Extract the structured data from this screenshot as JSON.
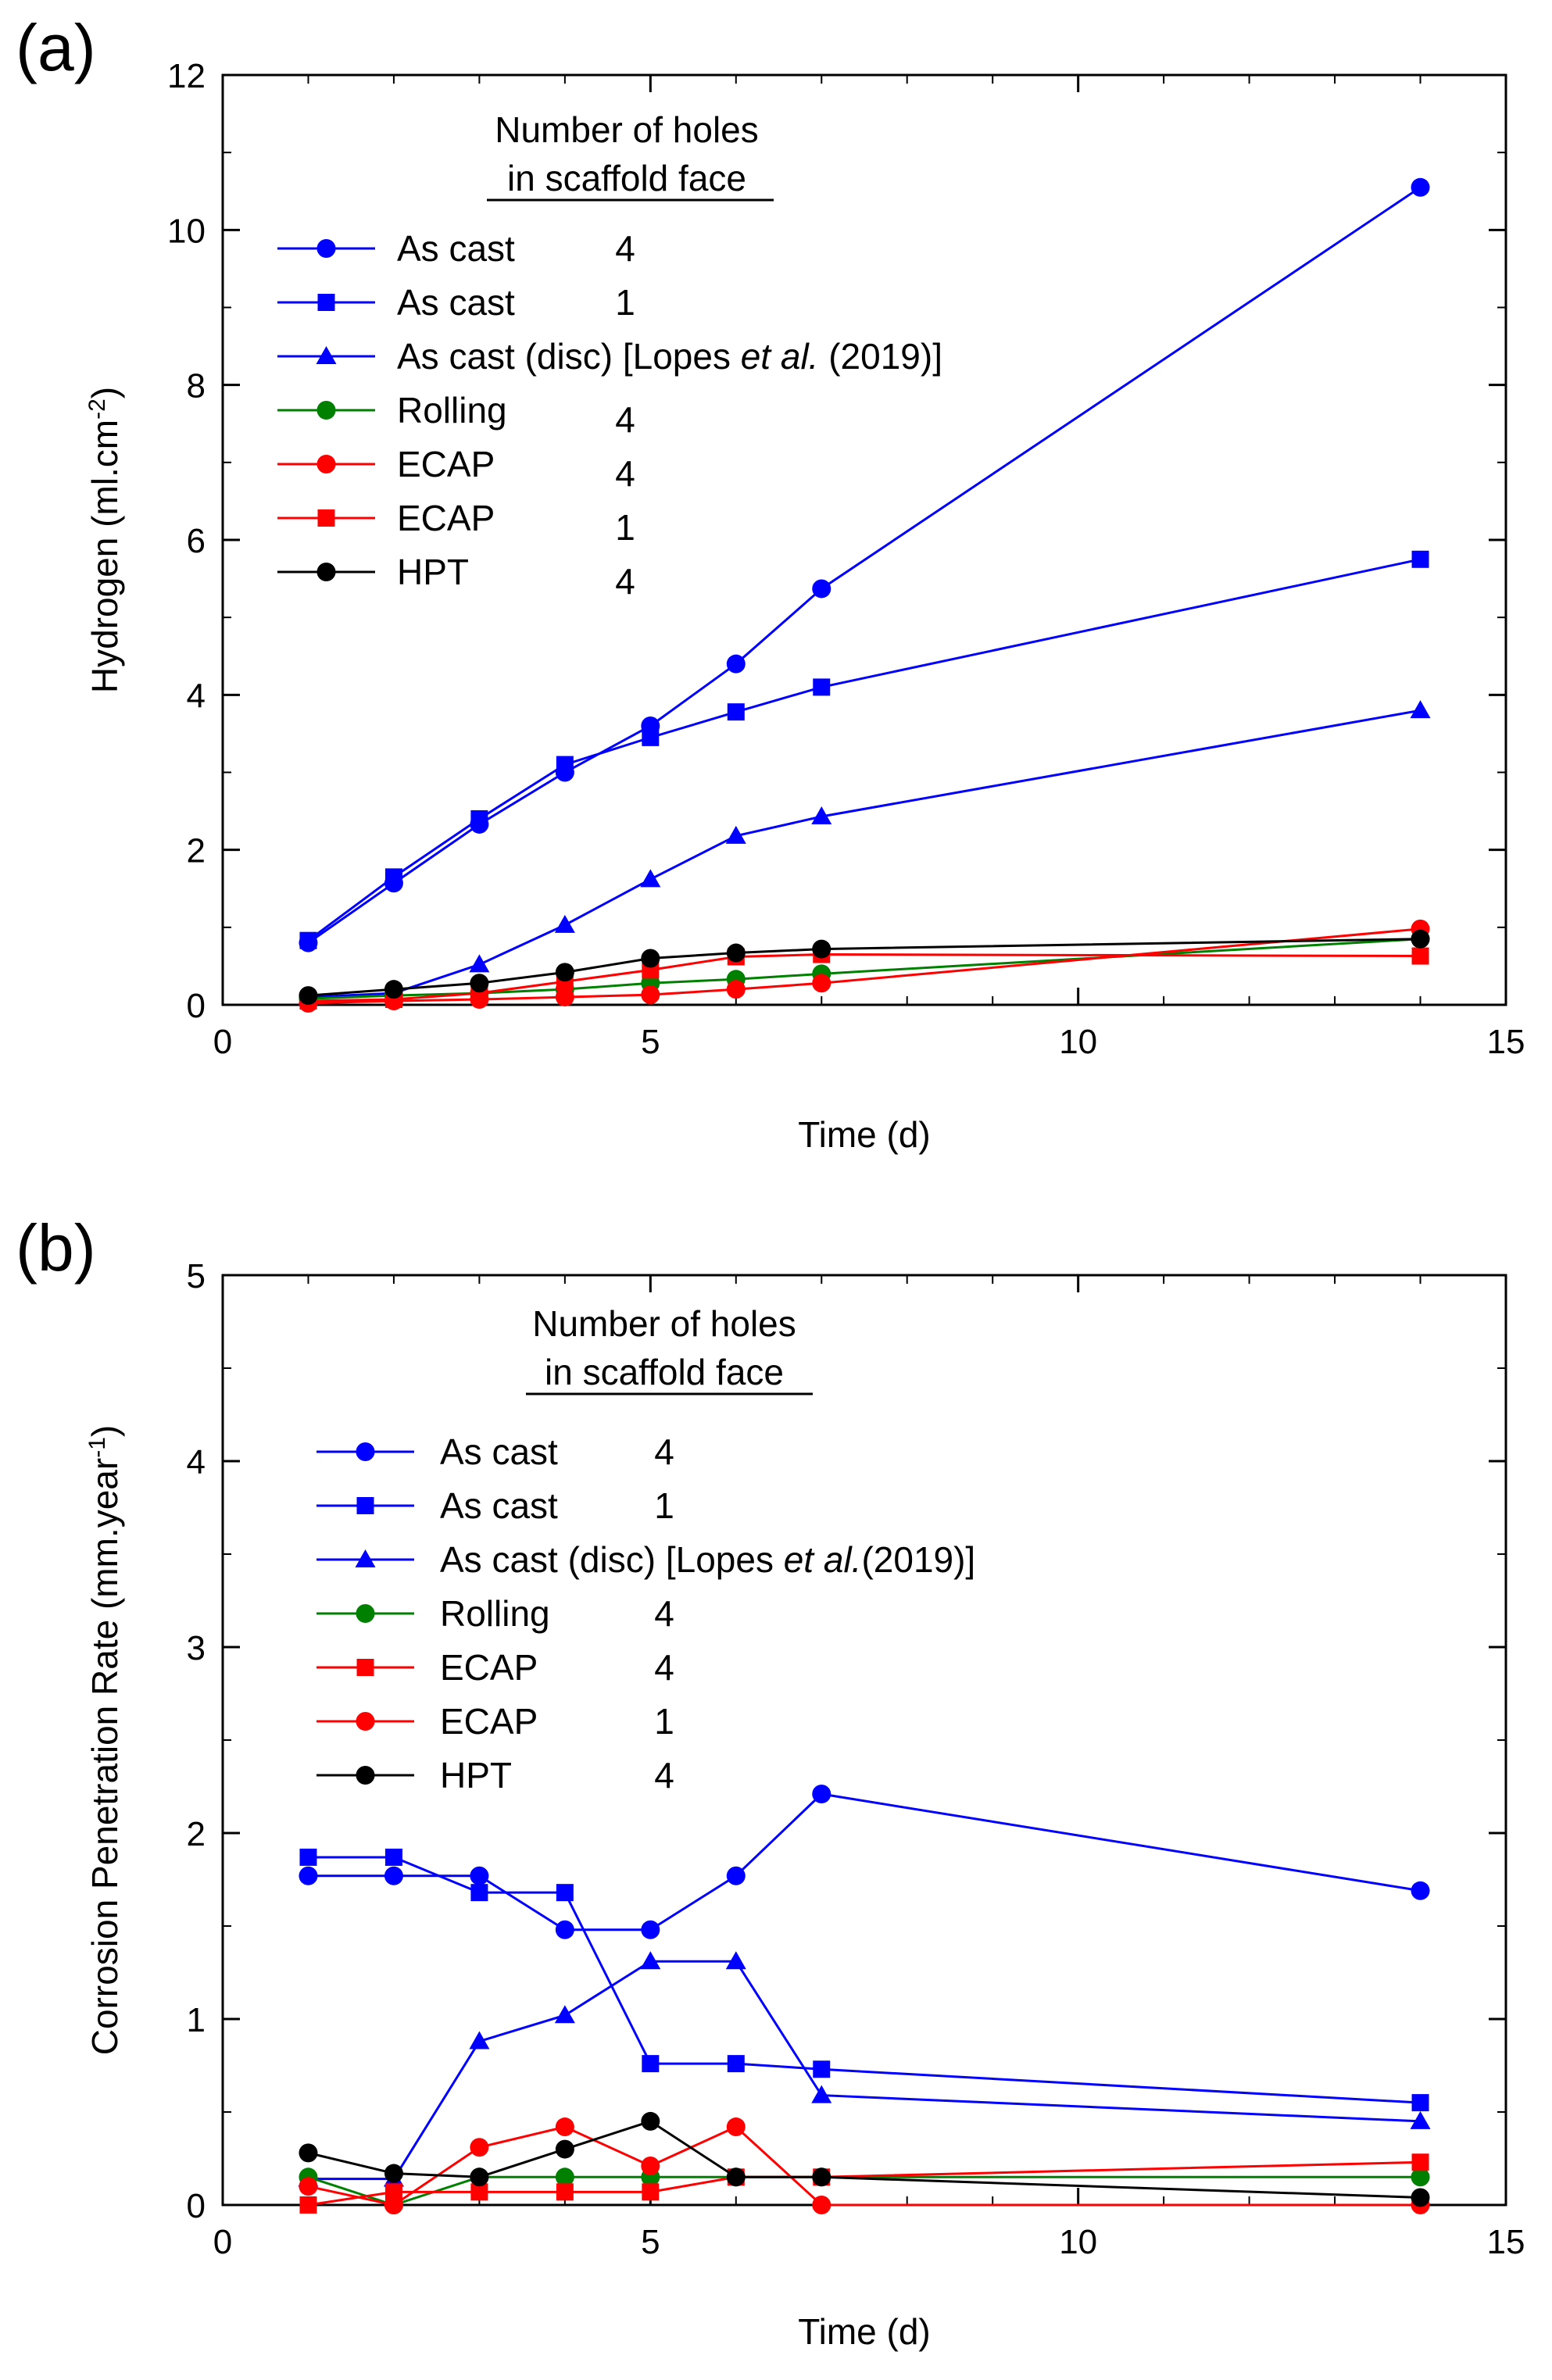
{
  "chart_data": [
    {
      "type": "line",
      "panel_label": "(a)",
      "title": "",
      "xlabel": "Time (d)",
      "ylabel_main": "Hydrogen (ml.cm",
      "ylabel_sup": "-2",
      "ylabel_close": ")",
      "xlim": [
        0,
        15
      ],
      "ylim": [
        0,
        12
      ],
      "xticks": [
        0,
        5,
        10,
        15
      ],
      "yticks": [
        0,
        2,
        4,
        6,
        8,
        10,
        12
      ],
      "grid": false,
      "legend": {
        "title_line1": "Number of holes",
        "title_line2": "in scaffold face",
        "placement": "top-left"
      },
      "series": [
        {
          "name": "As cast",
          "label_parts": [
            "As cast"
          ],
          "holes": "4",
          "color": "#0000ff",
          "marker": "circle",
          "x": [
            1,
            2,
            3,
            4,
            5,
            6,
            7,
            14
          ],
          "values": [
            0.8,
            1.57,
            2.33,
            3.0,
            3.6,
            4.4,
            5.37,
            10.55
          ]
        },
        {
          "name": "As cast",
          "label_parts": [
            "As cast"
          ],
          "holes": "1",
          "color": "#0000ff",
          "marker": "square",
          "x": [
            1,
            2,
            3,
            4,
            5,
            6,
            7,
            14
          ],
          "values": [
            0.83,
            1.65,
            2.4,
            3.1,
            3.45,
            3.78,
            4.1,
            5.75
          ]
        },
        {
          "name": "As cast (disc) [Lopes et al. (2019)]",
          "label_parts": [
            "As cast (disc) [Lopes ",
            "et al.",
            " (2019)]"
          ],
          "holes": "",
          "color": "#0000ff",
          "marker": "triangle",
          "x": [
            1,
            2,
            3,
            4,
            5,
            6,
            7,
            14
          ],
          "values": [
            0.1,
            0.15,
            0.52,
            1.03,
            1.62,
            2.18,
            2.43,
            3.8
          ]
        },
        {
          "name": "Rolling",
          "label_parts": [
            "Rolling"
          ],
          "holes": "4",
          "color": "#008000",
          "marker": "circle",
          "x": [
            1,
            2,
            3,
            4,
            5,
            6,
            7,
            14
          ],
          "values": [
            0.08,
            0.12,
            0.15,
            0.2,
            0.28,
            0.33,
            0.4,
            0.85
          ]
        },
        {
          "name": "ECAP",
          "label_parts": [
            "ECAP"
          ],
          "holes": "4",
          "color": "#ff0000",
          "marker": "circle",
          "x": [
            1,
            2,
            3,
            4,
            5,
            6,
            7,
            14
          ],
          "values": [
            0.02,
            0.05,
            0.07,
            0.1,
            0.13,
            0.2,
            0.28,
            0.98
          ]
        },
        {
          "name": "ECAP",
          "label_parts": [
            "ECAP"
          ],
          "holes": "1",
          "color": "#ff0000",
          "marker": "square",
          "x": [
            1,
            2,
            3,
            4,
            5,
            6,
            7,
            14
          ],
          "values": [
            0.05,
            0.07,
            0.15,
            0.3,
            0.45,
            0.62,
            0.65,
            0.63
          ]
        },
        {
          "name": "HPT",
          "label_parts": [
            "HPT"
          ],
          "holes": "4",
          "color": "#000000",
          "marker": "circle",
          "x": [
            1,
            2,
            3,
            4,
            5,
            6,
            7,
            14
          ],
          "values": [
            0.12,
            0.2,
            0.28,
            0.42,
            0.6,
            0.67,
            0.72,
            0.85
          ]
        }
      ]
    },
    {
      "type": "line",
      "panel_label": "(b)",
      "title": "",
      "xlabel": "Time (d)",
      "ylabel_main": "Corrosion Penetration Rate   (mm.year",
      "ylabel_sup": "-1",
      "ylabel_close": ")",
      "xlim": [
        0,
        15
      ],
      "ylim": [
        0,
        5
      ],
      "xticks": [
        0,
        5,
        10,
        15
      ],
      "yticks": [
        0,
        1,
        2,
        3,
        4,
        5
      ],
      "grid": false,
      "legend": {
        "title_line1": "Number of holes",
        "title_line2": "in scaffold face",
        "placement": "top-left"
      },
      "series": [
        {
          "name": "As cast",
          "label_parts": [
            "As cast"
          ],
          "holes": "4",
          "color": "#0000ff",
          "marker": "circle",
          "x": [
            1,
            2,
            3,
            4,
            5,
            6,
            7,
            14
          ],
          "values": [
            1.77,
            1.77,
            1.77,
            1.48,
            1.48,
            1.77,
            2.21,
            1.69
          ]
        },
        {
          "name": "As cast",
          "label_parts": [
            "As cast"
          ],
          "holes": "1",
          "color": "#0000ff",
          "marker": "square",
          "x": [
            1,
            2,
            3,
            4,
            5,
            6,
            7,
            14
          ],
          "values": [
            1.87,
            1.87,
            1.68,
            1.68,
            0.76,
            0.76,
            0.73,
            0.55
          ]
        },
        {
          "name": "As cast (disc) [Lopes et al.(2019)]",
          "label_parts": [
            "As cast  (disc) [Lopes ",
            "et al.",
            "(2019)]"
          ],
          "holes": "",
          "color": "#0000ff",
          "marker": "triangle",
          "x": [
            1,
            2,
            3,
            4,
            5,
            6,
            7,
            14
          ],
          "values": [
            0.14,
            0.14,
            0.88,
            1.02,
            1.31,
            1.31,
            0.59,
            0.45
          ]
        },
        {
          "name": "Rolling",
          "label_parts": [
            "Rolling"
          ],
          "holes": "4",
          "color": "#008000",
          "marker": "circle",
          "x": [
            1,
            2,
            3,
            4,
            5,
            6,
            7,
            14
          ],
          "values": [
            0.15,
            0.0,
            0.15,
            0.15,
            0.15,
            0.15,
            0.15,
            0.15
          ]
        },
        {
          "name": "ECAP",
          "label_parts": [
            "ECAP"
          ],
          "holes": "4",
          "color": "#ff0000",
          "marker": "square",
          "x": [
            1,
            2,
            3,
            4,
            5,
            6,
            7,
            14
          ],
          "values": [
            0.0,
            0.07,
            0.07,
            0.07,
            0.07,
            0.15,
            0.15,
            0.23
          ]
        },
        {
          "name": "ECAP",
          "label_parts": [
            "ECAP"
          ],
          "holes": "1",
          "color": "#ff0000",
          "marker": "circle",
          "x": [
            1,
            2,
            3,
            4,
            5,
            6,
            7,
            14
          ],
          "values": [
            0.1,
            0.0,
            0.31,
            0.42,
            0.21,
            0.42,
            0.0,
            0.0
          ]
        },
        {
          "name": "HPT",
          "label_parts": [
            "HPT"
          ],
          "holes": "4",
          "color": "#000000",
          "marker": "circle",
          "x": [
            1,
            2,
            3,
            4,
            5,
            6,
            7,
            14
          ],
          "values": [
            0.28,
            0.17,
            0.15,
            0.3,
            0.45,
            0.15,
            0.15,
            0.04
          ]
        }
      ]
    }
  ]
}
